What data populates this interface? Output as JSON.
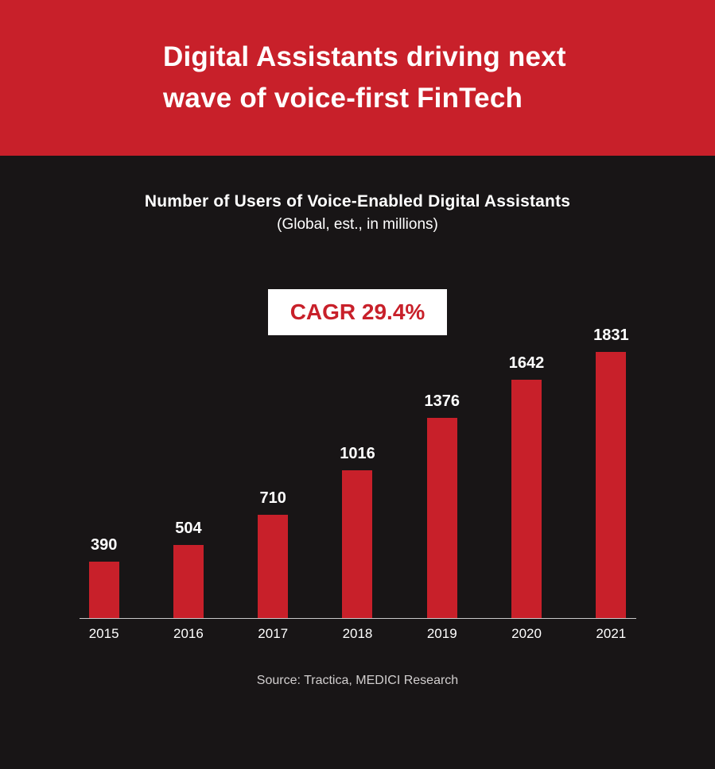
{
  "header": {
    "title_line1": "Digital Assistants driving next",
    "title_line2": "wave of voice-first FinTech"
  },
  "chart": {
    "title": "Number of Users of Voice-Enabled Digital Assistants",
    "subtitle": "(Global, est., in millions)",
    "badge": "CAGR 29.4%",
    "source": "Source: Tractica, MEDICI Research"
  },
  "chart_data": {
    "type": "bar",
    "categories": [
      "2015",
      "2016",
      "2017",
      "2018",
      "2019",
      "2020",
      "2021"
    ],
    "values": [
      390,
      504,
      710,
      1016,
      1376,
      1642,
      1831
    ],
    "title": "Number of Users of Voice-Enabled Digital Assistants",
    "subtitle": "(Global, est., in millions)",
    "annotation": "CAGR 29.4%",
    "source": "Source: Tractica, MEDICI Research",
    "xlabel": "",
    "ylabel": "",
    "ylim": [
      0,
      1900
    ],
    "grid": false,
    "legend": false,
    "bar_color": "#c8202a",
    "value_labels": true
  },
  "colors": {
    "accent_red": "#c8202a",
    "background_dark": "#181516",
    "text_light": "#ffffff",
    "axis_line": "#c9c9c9"
  }
}
